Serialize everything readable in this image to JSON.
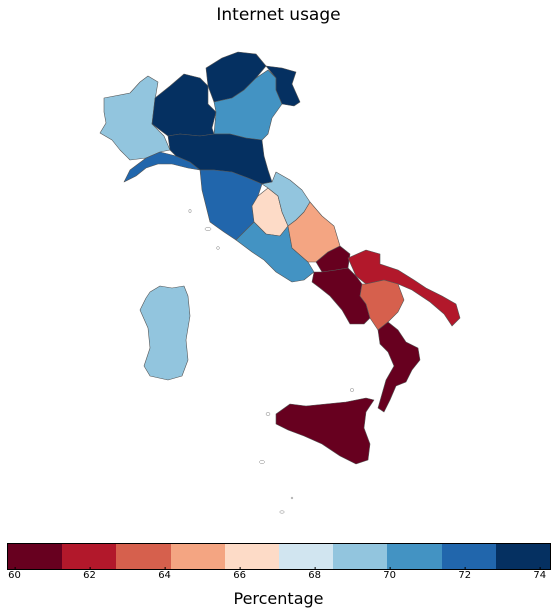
{
  "title": "Internet usage",
  "legend": {
    "label": "Percentage",
    "min": 59.8,
    "max": 74.3,
    "ticks": [
      60,
      62,
      64,
      66,
      68,
      70,
      72,
      74
    ],
    "colors": [
      "#67001f",
      "#b2182b",
      "#d6604d",
      "#f4a582",
      "#fddbc7",
      "#d1e5f0",
      "#92c5de",
      "#4393c3",
      "#2166ac",
      "#053061"
    ],
    "colors_note": "RdBu diverging, 10 classes"
  },
  "regions": [
    {
      "name": "Valle d'Aosta / Piemonte",
      "value": 69.5
    },
    {
      "name": "Lombardia",
      "value": 74.0
    },
    {
      "name": "Trentino-Alto Adige",
      "value": 74.0
    },
    {
      "name": "Veneto",
      "value": 71.0
    },
    {
      "name": "Friuli-Venezia Giulia",
      "value": 74.0
    },
    {
      "name": "Liguria",
      "value": 72.5
    },
    {
      "name": "Emilia-Romagna",
      "value": 74.0
    },
    {
      "name": "Toscana",
      "value": 72.5
    },
    {
      "name": "Umbria",
      "value": 66.5
    },
    {
      "name": "Marche",
      "value": 69.5
    },
    {
      "name": "Lazio",
      "value": 71.0
    },
    {
      "name": "Abruzzo",
      "value": 65.0
    },
    {
      "name": "Molise",
      "value": 60.0
    },
    {
      "name": "Campania",
      "value": 60.0
    },
    {
      "name": "Puglia",
      "value": 62.0
    },
    {
      "name": "Basilicata",
      "value": 63.5
    },
    {
      "name": "Calabria",
      "value": 60.0
    },
    {
      "name": "Sicilia",
      "value": 60.0
    },
    {
      "name": "Sardegna",
      "value": 69.5
    }
  ]
}
